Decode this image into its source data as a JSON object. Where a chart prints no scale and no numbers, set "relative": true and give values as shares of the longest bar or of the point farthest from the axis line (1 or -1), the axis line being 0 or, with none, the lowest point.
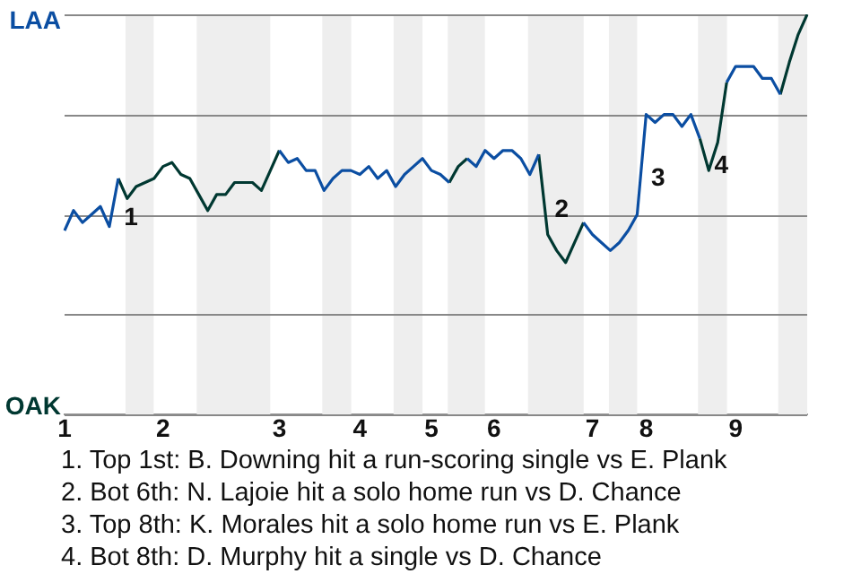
{
  "chart_data": {
    "type": "line",
    "categories": [
      "1",
      null,
      null,
      null,
      null,
      null,
      null,
      null,
      null,
      null,
      null,
      "2",
      null,
      null,
      null,
      null,
      null,
      null,
      null,
      null,
      null,
      null,
      null,
      null,
      "3",
      null,
      null,
      null,
      null,
      null,
      null,
      null,
      null,
      "4",
      null,
      null,
      null,
      null,
      null,
      null,
      null,
      "5",
      null,
      null,
      null,
      null,
      null,
      null,
      "6",
      null,
      null,
      null,
      null,
      null,
      null,
      null,
      null,
      null,
      null,
      "7",
      null,
      null,
      null,
      null,
      null,
      "8",
      null,
      null,
      null,
      null,
      null,
      null,
      null,
      null,
      null,
      "9",
      null,
      null,
      null,
      null,
      null,
      null,
      null,
      null
    ],
    "series": [
      {
        "color": "#0b4ea2",
        "values": [
          0.46,
          0.51,
          0.48,
          0.5,
          0.52,
          0.47,
          0.59,
          null,
          null,
          null,
          null,
          null,
          null,
          null,
          null,
          null,
          null,
          null,
          null,
          null,
          null,
          null,
          null,
          null,
          0.66,
          0.63,
          0.64,
          0.61,
          0.61,
          0.56,
          0.59,
          0.61,
          0.61,
          0.6,
          0.62,
          0.59,
          0.61,
          0.57,
          0.6,
          0.62,
          0.64,
          0.61,
          0.6,
          0.58,
          null,
          0.64,
          0.62,
          0.66,
          0.64,
          0.66,
          0.66,
          0.64,
          0.6,
          0.65,
          null,
          null,
          null,
          null,
          0.48,
          0.45,
          0.43,
          0.41,
          0.43,
          0.46,
          0.5,
          0.75,
          0.73,
          0.75,
          0.75,
          0.72,
          0.75,
          0.69,
          null,
          null,
          0.83,
          0.87,
          0.87,
          0.87,
          0.84,
          0.84,
          0.8,
          null,
          null,
          null
        ]
      },
      {
        "color": "#003831",
        "values": [
          null,
          null,
          null,
          null,
          null,
          null,
          0.59,
          0.54,
          0.57,
          0.58,
          0.59,
          0.62,
          0.63,
          0.6,
          0.59,
          0.55,
          0.51,
          0.55,
          0.55,
          0.58,
          0.58,
          0.58,
          0.56,
          0.61,
          0.66,
          null,
          null,
          null,
          null,
          null,
          null,
          null,
          null,
          null,
          null,
          null,
          null,
          null,
          null,
          null,
          null,
          null,
          null,
          0.58,
          0.62,
          0.64,
          null,
          null,
          null,
          null,
          null,
          null,
          null,
          0.65,
          0.45,
          0.41,
          0.38,
          0.43,
          0.48,
          null,
          null,
          null,
          null,
          null,
          null,
          null,
          null,
          null,
          null,
          null,
          null,
          0.69,
          0.61,
          0.68,
          0.83,
          null,
          null,
          null,
          null,
          null,
          0.8,
          0.88,
          0.95,
          1.0
        ]
      }
    ],
    "relative": true,
    "grid": "y",
    "legend": false,
    "marker": "none",
    "line_style": "solid",
    "annotations": [
      "LAA",
      "OAK",
      "1",
      "2",
      "3",
      "4",
      "1. Top 1st: B. Downing hit a run-scoring single vs E. Plank",
      "2. Bot 6th: N. Lajoie hit a solo home run vs D. Chance",
      "3. Top 8th: K. Morales hit a solo home run vs E. Plank",
      "4. Bot 8th: D. Murphy hit a single vs D. Chance"
    ]
  }
}
